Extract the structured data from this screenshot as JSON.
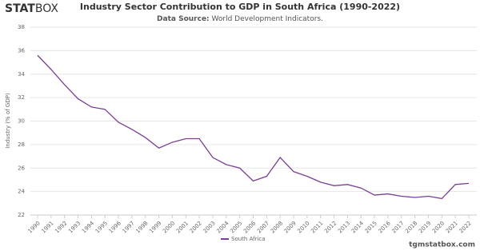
{
  "logo": {
    "bold": "STAT",
    "light": "BOX"
  },
  "footer": "tgmstatbox.com",
  "chart_data": {
    "type": "line",
    "title": "Industry Sector Contribution to GDP in South Africa (1990-2022)",
    "source_label": "Data Source:",
    "source": "World Development Indicators.",
    "y_label": "Industry (% of GDP)",
    "categories": [
      "1990",
      "1991",
      "1992",
      "1993",
      "1994",
      "1995",
      "1996",
      "1997",
      "1998",
      "1999",
      "2000",
      "2001",
      "2002",
      "2003",
      "2004",
      "2005",
      "2006",
      "2007",
      "2008",
      "2009",
      "2010",
      "2011",
      "2012",
      "2013",
      "2014",
      "2015",
      "2016",
      "2017",
      "2018",
      "2019",
      "2020",
      "2021",
      "2022"
    ],
    "series": [
      {
        "name": "South Africa",
        "color": "#7b3f99",
        "values": [
          35.6,
          34.4,
          33.1,
          31.9,
          31.2,
          31.0,
          29.9,
          29.3,
          28.6,
          27.7,
          28.2,
          28.5,
          28.5,
          26.9,
          26.3,
          26.0,
          24.9,
          25.3,
          26.9,
          25.7,
          25.3,
          24.8,
          24.5,
          24.6,
          24.3,
          23.7,
          23.8,
          23.6,
          23.5,
          23.6,
          23.4,
          24.6,
          24.7
        ]
      }
    ],
    "ylim": [
      22,
      38
    ],
    "yticks": [
      22,
      24,
      26,
      28,
      30,
      32,
      34,
      36,
      38
    ],
    "grid": true,
    "legend": "bottom"
  }
}
